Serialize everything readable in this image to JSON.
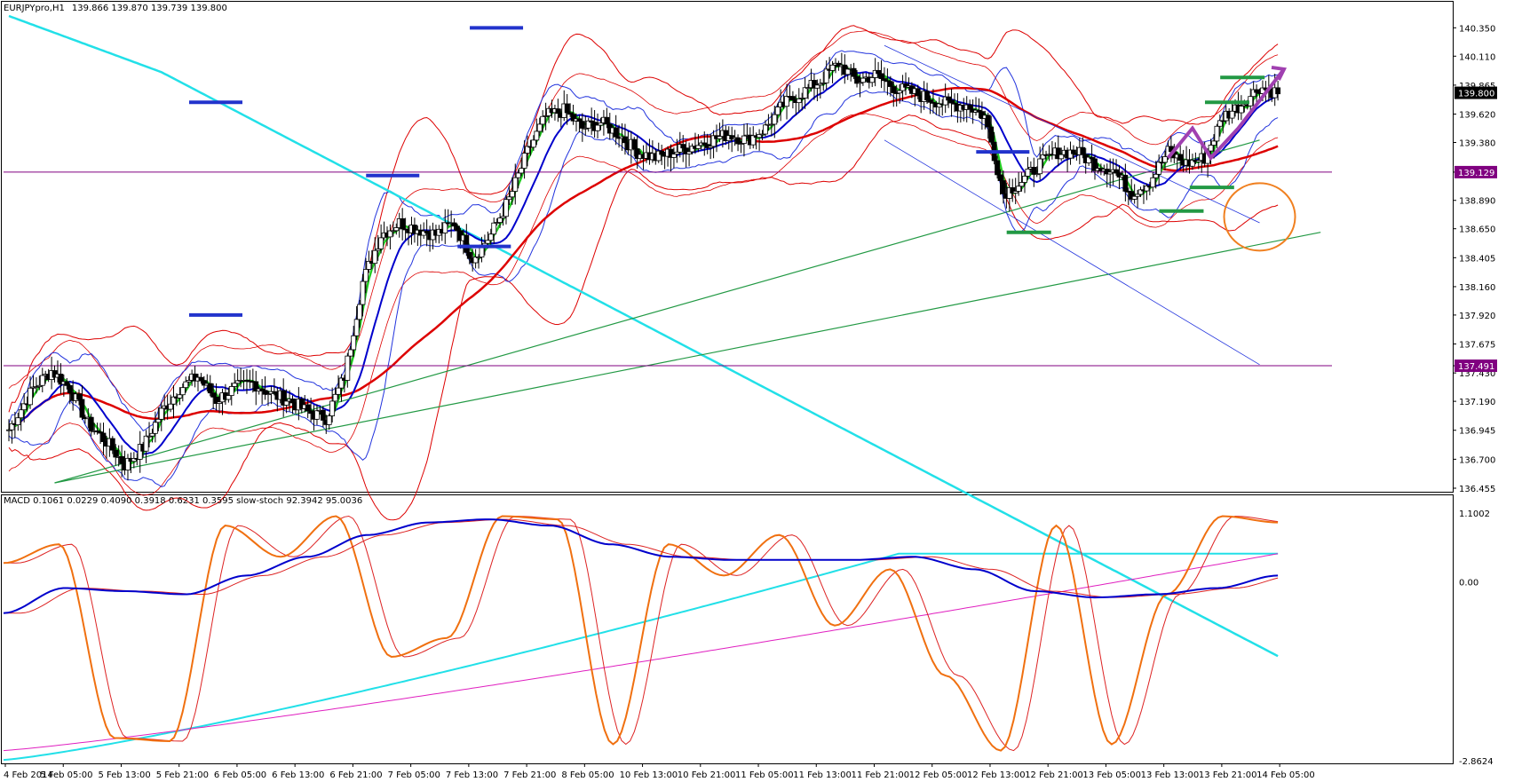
{
  "header": {
    "symbol": "EURJPYpro,H1",
    "ohlc": "139.866 139.870 139.739 139.800"
  },
  "indicator_header": "MACD 0.1061 0.0229 0.4090 0.3918 0.6231 0.3595  slow-stoch 92.3942 95.0036",
  "colors": {
    "background": "#ffffff",
    "price_marker": "#800080",
    "ema_fast": "#22cc22",
    "ema_mid": "#0000cc",
    "ema_slow": "#dd0000",
    "cyan_line": "#22e0e8",
    "bollinger": "#2233dd",
    "envelope": "#dd0000",
    "support_level": "#2233cc",
    "resistance_level": "#229944",
    "annotation_arrow": "#a040b0",
    "annotation_circle": "#f08020",
    "stoch_main": "#f07010",
    "stoch_signal": "#dd2222",
    "macd_main": "#0000cc",
    "macd_signal": "#dd2222",
    "macd_cyan": "#22e0e8",
    "macd_magenta": "#e020c0"
  },
  "chart_data": [
    {
      "type": "line",
      "subtype": "candlestick",
      "symbol": "EURJPYpro",
      "timeframe": "H1",
      "ylim": [
        136.455,
        140.45
      ],
      "y_ticks": [
        "140.350",
        "140.110",
        "139.865",
        "139.620",
        "139.380",
        "139.129",
        "138.890",
        "138.650",
        "138.405",
        "138.160",
        "137.920",
        "137.675",
        "137.491",
        "137.430",
        "137.190",
        "136.945",
        "136.700",
        "136.455"
      ],
      "highlighted_levels": [
        "139.800",
        "139.129",
        "137.491"
      ],
      "current_price": "139.800",
      "x_labels": [
        "4 Feb 2014",
        "5 Feb 05:00",
        "5 Feb 13:00",
        "5 Feb 21:00",
        "6 Feb 05:00",
        "6 Feb 13:00",
        "6 Feb 21:00",
        "7 Feb 05:00",
        "7 Feb 13:00",
        "7 Feb 21:00",
        "8 Feb 05:00",
        "10 Feb 13:00",
        "10 Feb 21:00",
        "11 Feb 05:00",
        "11 Feb 13:00",
        "11 Feb 21:00",
        "12 Feb 05:00",
        "12 Feb 13:00",
        "12 Feb 21:00",
        "13 Feb 05:00",
        "13 Feb 13:00",
        "13 Feb 21:00",
        "14 Feb 05:00"
      ],
      "close_path": [
        [
          0,
          136.95
        ],
        [
          8,
          137.3
        ],
        [
          14,
          137.45
        ],
        [
          20,
          137.3
        ],
        [
          26,
          137.0
        ],
        [
          32,
          136.85
        ],
        [
          38,
          136.65
        ],
        [
          44,
          136.8
        ],
        [
          50,
          137.1
        ],
        [
          56,
          137.3
        ],
        [
          62,
          137.4
        ],
        [
          68,
          137.2
        ],
        [
          74,
          137.3
        ],
        [
          80,
          137.35
        ],
        [
          86,
          137.25
        ],
        [
          92,
          137.2
        ],
        [
          98,
          137.1
        ],
        [
          104,
          137.05
        ],
        [
          110,
          137.4
        ],
        [
          116,
          138.2
        ],
        [
          122,
          138.6
        ],
        [
          128,
          138.7
        ],
        [
          134,
          138.65
        ],
        [
          140,
          138.6
        ],
        [
          146,
          138.7
        ],
        [
          152,
          138.4
        ],
        [
          158,
          138.6
        ],
        [
          164,
          138.9
        ],
        [
          170,
          139.3
        ],
        [
          176,
          139.6
        ],
        [
          182,
          139.65
        ],
        [
          188,
          139.5
        ],
        [
          194,
          139.55
        ],
        [
          200,
          139.45
        ],
        [
          206,
          139.3
        ],
        [
          212,
          139.25
        ],
        [
          218,
          139.3
        ],
        [
          224,
          139.35
        ],
        [
          230,
          139.4
        ],
        [
          236,
          139.45
        ],
        [
          242,
          139.4
        ],
        [
          248,
          139.5
        ],
        [
          254,
          139.7
        ],
        [
          260,
          139.8
        ],
        [
          266,
          139.9
        ],
        [
          272,
          140.05
        ],
        [
          278,
          139.9
        ],
        [
          284,
          139.95
        ],
        [
          290,
          139.85
        ],
        [
          296,
          139.8
        ],
        [
          302,
          139.75
        ],
        [
          308,
          139.7
        ],
        [
          314,
          139.7
        ],
        [
          320,
          139.6
        ],
        [
          326,
          138.95
        ],
        [
          332,
          139.05
        ],
        [
          338,
          139.2
        ],
        [
          344,
          139.3
        ],
        [
          350,
          139.3
        ],
        [
          356,
          139.2
        ],
        [
          362,
          139.15
        ],
        [
          368,
          138.95
        ],
        [
          374,
          139.05
        ],
        [
          380,
          139.3
        ],
        [
          386,
          139.2
        ],
        [
          392,
          139.25
        ],
        [
          398,
          139.6
        ],
        [
          404,
          139.7
        ],
        [
          410,
          139.85
        ],
        [
          416,
          139.8
        ]
      ],
      "support_levels": [
        137.92,
        138.5,
        139.1,
        139.72
      ],
      "resistance_levels": [
        138.62,
        138.8,
        139.0
      ],
      "series": [
        {
          "name": "EURJPYpro,H1",
          "values": [
            136.95,
            137.3,
            137.45,
            137.3,
            137.0,
            136.85,
            136.65,
            136.8,
            137.1,
            137.3,
            137.4,
            137.2,
            137.3,
            137.35,
            137.25,
            137.2,
            137.1,
            137.05,
            137.4,
            138.2,
            138.6,
            138.7,
            138.65,
            138.6,
            138.7,
            138.4,
            138.6,
            138.9,
            139.3,
            139.6,
            139.65,
            139.5,
            139.55,
            139.45,
            139.3,
            139.25,
            139.3,
            139.35,
            139.4,
            139.45,
            139.4,
            139.5,
            139.7,
            139.8,
            139.9,
            140.05,
            139.9,
            139.95,
            139.85,
            139.8,
            139.75,
            139.7,
            139.7,
            139.6,
            138.95,
            139.05,
            139.2,
            139.3,
            139.3,
            139.2,
            139.15,
            138.95,
            139.05,
            139.3,
            139.2,
            139.25,
            139.6,
            139.7,
            139.85,
            139.8
          ]
        }
      ]
    },
    {
      "type": "line",
      "title": "MACD 0.1061 0.0229 0.4090 0.3918 0.6231 0.3595  slow-stoch 92.3942 95.0036",
      "ylim": [
        -2.8624,
        1.1002
      ],
      "y_ticks": [
        "1.1002",
        "0.00",
        "-2.8624"
      ],
      "series": [
        {
          "name": "MACD",
          "values": [
            -0.5,
            -0.1,
            -0.15,
            -0.2,
            0.1,
            0.4,
            0.75,
            0.95,
            1.0,
            0.9,
            0.6,
            0.4,
            0.35,
            0.35,
            0.35,
            0.4,
            0.2,
            -0.15,
            -0.25,
            -0.2,
            -0.1,
            0.1
          ]
        },
        {
          "name": "slow-stoch",
          "values": [
            0.3,
            0.6,
            -2.5,
            -2.55,
            0.9,
            0.4,
            1.05,
            -1.2,
            -0.9,
            1.05,
            1.0,
            -2.6,
            0.6,
            0.1,
            0.75,
            -0.7,
            0.2,
            -1.5,
            -2.7,
            0.9,
            -2.6,
            -0.2,
            1.05,
            0.95
          ]
        }
      ]
    }
  ]
}
